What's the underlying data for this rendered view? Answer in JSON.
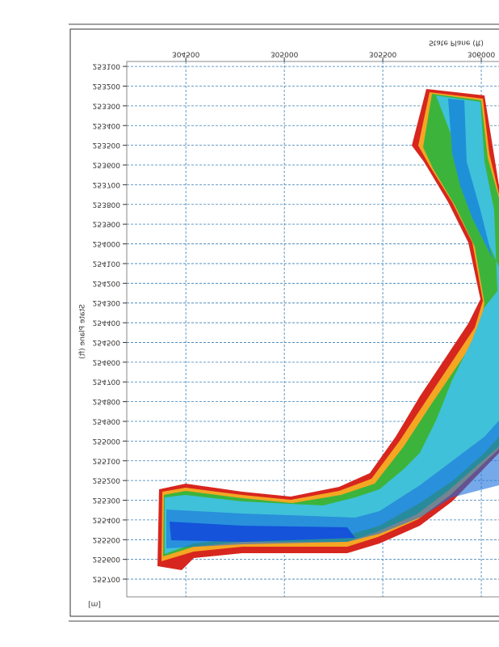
{
  "chart_data": {
    "type": "contour-map",
    "x_axis_label": "State Plane (ft)",
    "y_axis_label": "State Plane (ft)",
    "unit_label": "[m]",
    "xlim": [
      304200,
      306090
    ],
    "xticks": [
      304500,
      305000,
      305500,
      306000
    ],
    "ylim": [
      253075,
      255790
    ],
    "y_inverted": true,
    "yticks": [
      253100,
      253200,
      253300,
      253400,
      253500,
      253600,
      253700,
      253800,
      253900,
      254000,
      254100,
      254200,
      254300,
      254400,
      254500,
      254600,
      254700,
      254800,
      254900,
      255000,
      255100,
      255200,
      255300,
      255400,
      255500,
      255600,
      255700
    ],
    "grid": true,
    "mirrored_text": true
  }
}
